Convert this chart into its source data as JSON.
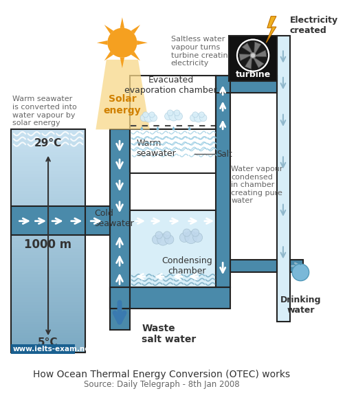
{
  "title": "How Ocean Thermal Energy Conversion (OTEC) works",
  "source": "Source: Daily Telegraph - 8th Jan 2008",
  "website": "www.ielts-exam.net",
  "bg_color": "#ffffff",
  "annotations": {
    "warm_seawater_label": "Warm\nseawater",
    "cold_seawater_label": "Cold\nseawater",
    "evap_chamber": "Evacuated\nevaporation chamber",
    "cond_chamber": "Condensing\nchamber",
    "waste_water": "Waste\nsalt water",
    "drinking_water": "Drinking\nwater",
    "salt_label": "Salt",
    "electricity": "Electricity\ncreated",
    "turbine": "turbine",
    "solar_energy": "Solar\nenergy",
    "warm_text": "Warm seawater\nis converted into\nwater vapour by\nsolar energy",
    "saltless_text": "Saltless water\nvapour turns\nturbine creating\nelectricity",
    "vapour_text": "Water vapour\ncondensed\nin chamber\ncreating pure\nwater",
    "temp_29": "29°C",
    "temp_5": "5°C",
    "depth": "1000 m"
  },
  "colors": {
    "ocean_top": "#c8dfe8",
    "ocean_bot": "#5090b0",
    "pipe_blue": "#6ab0cc",
    "pipe_dark": "#4a8aaa",
    "chamber_bg": "#d8eef8",
    "warm_water": "#c0dde8",
    "arrow_white": "#ffffff",
    "arrow_blue": "#3a7ab0",
    "outline": "#222222",
    "text_dark": "#333333",
    "text_gray": "#666666",
    "sun_orange": "#f5a020",
    "solar_yellow": "#f8d070",
    "turbine_bg": "#111111",
    "lightning": "#f0b020",
    "water_drop": "#80b8d8",
    "website_bg": "#1a6090"
  }
}
